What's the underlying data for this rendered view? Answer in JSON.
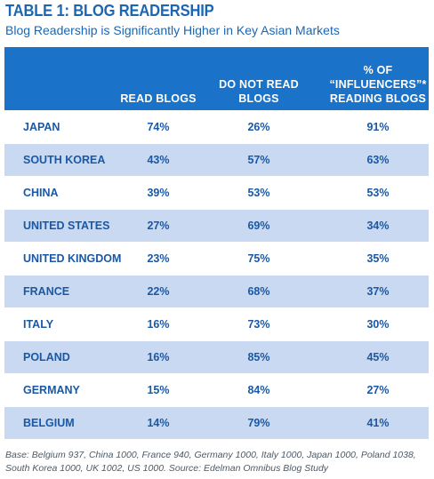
{
  "title": "TABLE 1: BLOG READERSHIP",
  "subtitle": "Blog Readership is Significantly Higher in Key Asian Markets",
  "columns": {
    "read": "READ BLOGS",
    "not_read": "DO NOT READ BLOGS",
    "influencers_line1": "% OF",
    "influencers_line2": "“INFLUENCERS”*",
    "influencers_line3": "READING BLOGS"
  },
  "rows": [
    {
      "country": "JAPAN",
      "read": "74%",
      "not_read": "26%",
      "influencers": "91%"
    },
    {
      "country": "SOUTH KOREA",
      "read": "43%",
      "not_read": "57%",
      "influencers": "63%"
    },
    {
      "country": "CHINA",
      "read": "39%",
      "not_read": "53%",
      "influencers": "53%"
    },
    {
      "country": "UNITED STATES",
      "read": "27%",
      "not_read": "69%",
      "influencers": "34%"
    },
    {
      "country": "UNITED KINGDOM",
      "read": "23%",
      "not_read": "75%",
      "influencers": "35%"
    },
    {
      "country": "FRANCE",
      "read": "22%",
      "not_read": "68%",
      "influencers": "37%"
    },
    {
      "country": "ITALY",
      "read": "16%",
      "not_read": "73%",
      "influencers": "30%"
    },
    {
      "country": "POLAND",
      "read": "16%",
      "not_read": "85%",
      "influencers": "45%"
    },
    {
      "country": "GERMANY",
      "read": "15%",
      "not_read": "84%",
      "influencers": "27%"
    },
    {
      "country": "BELGIUM",
      "read": "14%",
      "not_read": "79%",
      "influencers": "41%"
    }
  ],
  "footnote": "Base: Belgium 937, China 1000, France 940, Germany 1000, Italy 1000, Japan 1000, Poland 1038, South Korea 1000, UK 1002, US 1000. Source: Edelman Omnibus Blog Study",
  "colors": {
    "brand_blue": "#1a73c8",
    "title_blue": "#1a66b3",
    "row_alt": "#c9d9f1",
    "cell_text": "#1a58a6"
  }
}
